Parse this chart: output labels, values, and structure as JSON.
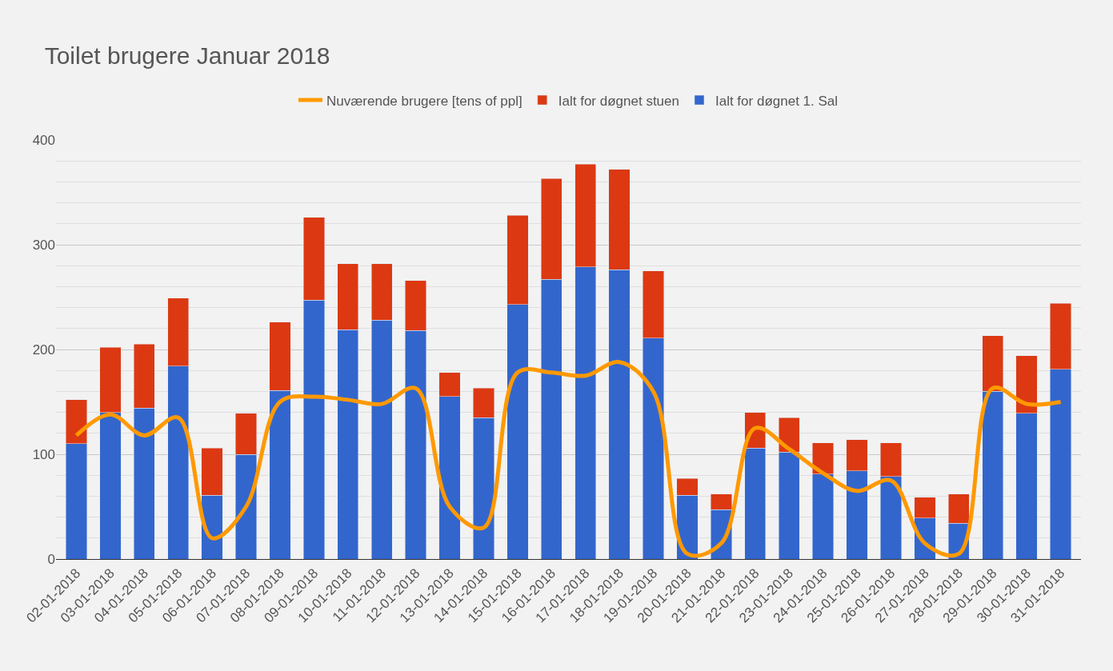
{
  "chart_data": {
    "type": "bar",
    "title": "Toilet brugere Januar 2018",
    "stacked": true,
    "legend": "top",
    "grid": "y",
    "categories": [
      "02-01-2018",
      "03-01-2018",
      "04-01-2018",
      "05-01-2018",
      "06-01-2018",
      "07-01-2018",
      "08-01-2018",
      "09-01-2018",
      "10-01-2018",
      "11-01-2018",
      "12-01-2018",
      "13-01-2018",
      "14-01-2018",
      "15-01-2018",
      "16-01-2018",
      "17-01-2018",
      "18-01-2018",
      "19-01-2018",
      "20-01-2018",
      "21-01-2018",
      "22-01-2018",
      "23-01-2018",
      "24-01-2018",
      "25-01-2018",
      "26-01-2018",
      "27-01-2018",
      "28-01-2018",
      "29-01-2018",
      "30-01-2018",
      "31-01-2018"
    ],
    "ylim": [
      0,
      400
    ],
    "yticks": [
      0,
      {
        "value": 20,
        "label": null
      },
      {
        "value": 40,
        "label": null
      },
      {
        "value": 60,
        "label": null
      },
      {
        "value": 80,
        "label": null
      },
      100,
      {
        "value": 120,
        "label": null
      },
      {
        "value": 140,
        "label": null
      },
      {
        "value": 160,
        "label": null
      },
      {
        "value": 180,
        "label": null
      },
      200,
      {
        "value": 220,
        "label": null
      },
      {
        "value": 240,
        "label": null
      },
      {
        "value": 260,
        "label": null
      },
      {
        "value": 280,
        "label": null
      },
      300,
      {
        "value": 320,
        "label": null
      },
      {
        "value": 340,
        "label": null
      },
      {
        "value": 360,
        "label": null
      },
      {
        "value": 380,
        "label": null
      },
      400
    ],
    "series": [
      {
        "name": "Ialt for døgnet 1. Sal",
        "color": "#3366cc",
        "values": [
          110,
          140,
          144,
          184,
          61,
          100,
          161,
          247,
          219,
          228,
          218,
          155,
          135,
          243,
          267,
          279,
          276,
          211,
          61,
          47,
          106,
          102,
          81,
          84,
          79,
          39,
          34,
          160,
          139,
          181
        ]
      },
      {
        "name": "Ialt for døgnet stuen",
        "color": "#dc3912",
        "values": [
          42,
          62,
          61,
          65,
          45,
          39,
          65,
          79,
          63,
          54,
          48,
          23,
          28,
          85,
          96,
          98,
          96,
          64,
          16,
          15,
          34,
          33,
          30,
          30,
          32,
          20,
          28,
          53,
          55,
          63
        ]
      },
      {
        "name": "Nuværende brugere [tens of ppl]",
        "color": "#ff9900",
        "type": "line",
        "values": [
          118,
          138,
          118,
          135,
          20,
          50,
          150,
          155,
          152,
          148,
          163,
          50,
          30,
          178,
          178,
          175,
          188,
          160,
          5,
          15,
          125,
          105,
          82,
          65,
          75,
          15,
          5,
          163,
          148,
          150
        ]
      }
    ]
  }
}
